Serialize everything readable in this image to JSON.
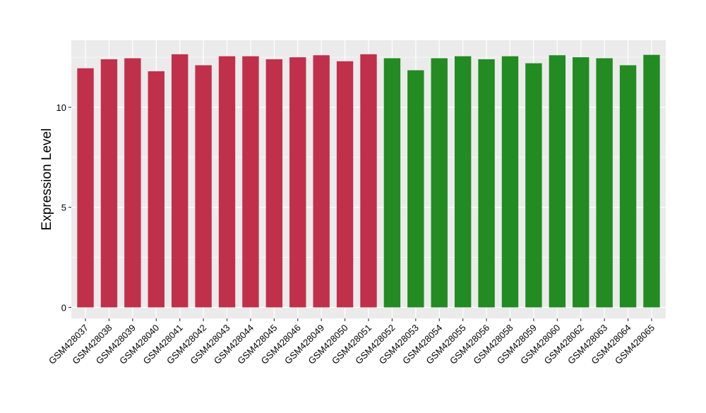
{
  "chart_data": {
    "type": "bar",
    "title": "",
    "xlabel": "",
    "ylabel": "Expression Level",
    "ylim": [
      -0.55,
      13.35
    ],
    "y_ticks": [
      0,
      5,
      10
    ],
    "grid": true,
    "legend": "none",
    "colors": {
      "group1": "#C1304A",
      "group2": "#228B22",
      "panel": "#EBEBEB",
      "grid": "#FFFFFF"
    },
    "categories": [
      "GSM428037",
      "GSM428038",
      "GSM428039",
      "GSM428040",
      "GSM428041",
      "GSM428042",
      "GSM428043",
      "GSM428044",
      "GSM428045",
      "GSM428046",
      "GSM428049",
      "GSM428050",
      "GSM428051",
      "GSM428052",
      "GSM428053",
      "GSM428054",
      "GSM428055",
      "GSM428056",
      "GSM428058",
      "GSM428059",
      "GSM428060",
      "GSM428062",
      "GSM428063",
      "GSM428064",
      "GSM428065"
    ],
    "values": [
      11.95,
      12.4,
      12.45,
      11.8,
      12.65,
      12.1,
      12.55,
      12.55,
      12.4,
      12.5,
      12.6,
      12.3,
      12.65,
      12.45,
      11.85,
      12.45,
      12.55,
      12.4,
      12.55,
      12.2,
      12.6,
      12.5,
      12.45,
      12.1,
      12.62
    ],
    "groups": [
      "group1",
      "group1",
      "group1",
      "group1",
      "group1",
      "group1",
      "group1",
      "group1",
      "group1",
      "group1",
      "group1",
      "group1",
      "group1",
      "group2",
      "group2",
      "group2",
      "group2",
      "group2",
      "group2",
      "group2",
      "group2",
      "group2",
      "group2",
      "group2",
      "group2"
    ]
  }
}
